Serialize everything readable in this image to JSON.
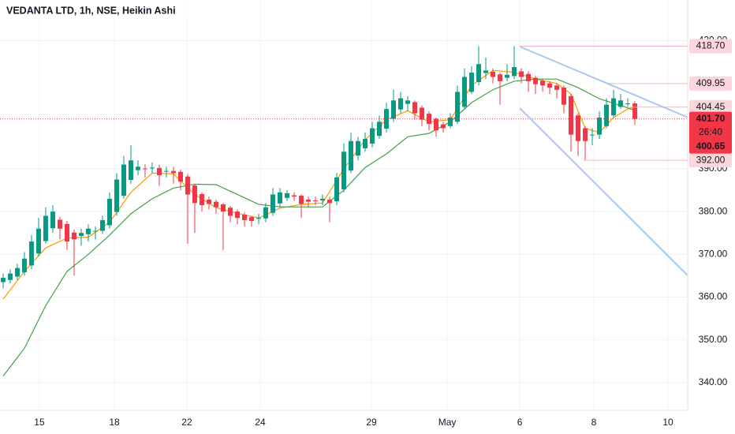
{
  "chart_data": {
    "type": "candlestick",
    "title": "VEDANTA LTD, 1h, NSE, Heikin Ashi",
    "up_color": "#089981",
    "down_color": "#f23645",
    "open": [
      363.5,
      364.0,
      364.8,
      365.8,
      367.4,
      370.2,
      373.1,
      376.1,
      378.1,
      377.1,
      375.1,
      374.3,
      374.7,
      375.4,
      375.5,
      376.8,
      379.9,
      383.7,
      387.4,
      389.7,
      390.1,
      390.1,
      390.2,
      389.4,
      389.5,
      389.3,
      388.2,
      386.1,
      384.1,
      382.8,
      382.3,
      381.7,
      380.9,
      380.0,
      379.3,
      378.7,
      378.3,
      378.4,
      379.7,
      381.9,
      383.2,
      383.8,
      383.7,
      382.8,
      382.6,
      382.6,
      382.8,
      382.4,
      385.2,
      389.6,
      393.1,
      394.8,
      395.9,
      397.7,
      399.4,
      401.7,
      403.9,
      405.2,
      405.6,
      404.3,
      402.9,
      401.7,
      400.4,
      400.0,
      401.0,
      404.5,
      408.0,
      410.3,
      412.4,
      412.7,
      412.1,
      411.3,
      411.7,
      412.8,
      412.2,
      411.3,
      410.6,
      410.0,
      409.5,
      409.0,
      407.0,
      402.5,
      399.5,
      398.0,
      398.0,
      400.0,
      402.5,
      404.5,
      405.3,
      405.3
    ],
    "high": [
      365.5,
      366.5,
      367.8,
      370.5,
      374.5,
      378.5,
      381.0,
      381.5,
      378.8,
      377.8,
      375.8,
      376.0,
      377.0,
      376.5,
      379.0,
      384.5,
      389.0,
      393.0,
      395.5,
      392.0,
      391.0,
      391.5,
      391.0,
      390.5,
      390.5,
      389.8,
      388.8,
      386.5,
      384.5,
      383.5,
      382.8,
      382.0,
      381.3,
      380.5,
      379.8,
      379.0,
      379.5,
      382.0,
      385.5,
      385.5,
      385.0,
      384.5,
      384.0,
      383.5,
      383.5,
      384.0,
      383.5,
      389.0,
      396.0,
      398.5,
      397.5,
      398.5,
      401.0,
      402.5,
      405.5,
      408.5,
      408.0,
      407.0,
      406.0,
      404.8,
      403.5,
      402.0,
      401.0,
      403.0,
      409.5,
      413.5,
      414.0,
      418.7,
      416.0,
      413.5,
      412.5,
      414.5,
      418.7,
      413.5,
      412.8,
      411.8,
      411.0,
      410.5,
      410.0,
      409.5,
      407.5,
      403.0,
      400.0,
      399.5,
      403.5,
      406.5,
      408.5,
      407.5,
      406.5,
      405.8
    ],
    "low": [
      362.0,
      363.2,
      364.0,
      365.0,
      366.5,
      369.5,
      372.5,
      375.0,
      373.5,
      371.0,
      365.0,
      372.0,
      373.0,
      373.5,
      374.8,
      376.0,
      379.0,
      383.0,
      386.5,
      388.5,
      388.0,
      389.0,
      386.0,
      388.0,
      386.5,
      385.0,
      372.5,
      375.0,
      380.0,
      380.5,
      379.5,
      371.0,
      377.5,
      377.0,
      376.5,
      376.5,
      377.0,
      377.5,
      379.0,
      381.0,
      382.5,
      382.5,
      378.5,
      381.0,
      381.5,
      381.5,
      377.5,
      381.5,
      384.5,
      389.0,
      392.0,
      394.0,
      395.0,
      397.0,
      398.5,
      401.0,
      403.0,
      403.5,
      401.5,
      400.0,
      399.0,
      397.5,
      398.5,
      399.5,
      400.5,
      404.0,
      407.5,
      409.5,
      411.0,
      410.0,
      405.0,
      410.5,
      411.0,
      410.0,
      408.0,
      407.5,
      408.0,
      407.5,
      406.5,
      403.0,
      394.0,
      393.0,
      392.0,
      395.5,
      397.0,
      399.5,
      402.0,
      404.0,
      404.5,
      400.3
    ],
    "close": [
      364.5,
      365.5,
      366.8,
      369.0,
      373.0,
      376.0,
      379.0,
      380.0,
      376.0,
      373.0,
      373.5,
      375.0,
      376.0,
      375.5,
      378.0,
      383.0,
      387.5,
      391.0,
      392.0,
      390.5,
      390.0,
      390.3,
      388.5,
      389.5,
      389.0,
      387.0,
      384.0,
      382.0,
      381.5,
      381.8,
      381.0,
      380.0,
      379.0,
      378.5,
      378.0,
      377.8,
      378.5,
      381.0,
      384.0,
      384.5,
      384.3,
      383.5,
      381.8,
      382.3,
      382.5,
      383.0,
      382.0,
      388.0,
      394.0,
      396.5,
      396.5,
      397.0,
      399.5,
      401.0,
      404.0,
      406.0,
      406.5,
      406.0,
      403.0,
      401.5,
      400.5,
      399.0,
      399.5,
      402.0,
      408.0,
      411.5,
      412.5,
      414.5,
      413.0,
      411.5,
      410.5,
      412.0,
      413.8,
      411.5,
      410.5,
      409.8,
      409.5,
      409.0,
      408.5,
      405.0,
      398.0,
      396.5,
      396.5,
      398.0,
      402.0,
      405.0,
      406.5,
      406.0,
      405.3,
      401.7
    ],
    "lines": [
      {
        "color": "#ff9800",
        "x": [
          0,
          3,
          6,
          9,
          12,
          15,
          18,
          21,
          24,
          27,
          30,
          33,
          36,
          39,
          42,
          45,
          48,
          51,
          54,
          57,
          60,
          63,
          66,
          69,
          72,
          75,
          78,
          80,
          82,
          84,
          86,
          88,
          89
        ],
        "values": [
          359.5,
          366,
          371.5,
          373.8,
          374,
          377.5,
          384.5,
          389,
          388.8,
          384,
          380.9,
          379.6,
          378.5,
          380.8,
          381.7,
          382.0,
          390,
          396.8,
          401.5,
          403.6,
          401,
          401.5,
          409.5,
          413,
          412.6,
          411,
          410,
          407.5,
          399.5,
          398.5,
          402,
          404,
          404.6
        ]
      },
      {
        "color": "#43a047",
        "x": [
          0,
          3,
          6,
          9,
          12,
          15,
          18,
          21,
          24,
          27,
          30,
          33,
          36,
          39,
          42,
          45,
          48,
          51,
          54,
          57,
          60,
          63,
          66,
          69,
          72,
          75,
          78,
          81,
          84,
          87,
          89
        ],
        "values": [
          341.5,
          348,
          358,
          366,
          370,
          374.5,
          379.5,
          383,
          385.5,
          386.4,
          386.3,
          384,
          381.7,
          381.1,
          381.1,
          381.1,
          385,
          390.3,
          393.5,
          397.5,
          398.3,
          401,
          405.5,
          408.5,
          410.5,
          411,
          411,
          409,
          406.4,
          404.8,
          403.7
        ]
      }
    ],
    "xlim": [
      -0.44,
      96.44
    ],
    "xticks": [
      {
        "value": 5.11,
        "label": "15"
      },
      {
        "value": 15.67,
        "label": "18"
      },
      {
        "value": 25.89,
        "label": "22"
      },
      {
        "value": 36.22,
        "label": "24"
      },
      {
        "value": 51.89,
        "label": "29"
      },
      {
        "value": 62.56,
        "label": "May"
      },
      {
        "value": 72.78,
        "label": "6"
      },
      {
        "value": 83.22,
        "label": "8"
      },
      {
        "value": 93.67,
        "label": "10"
      }
    ],
    "ylim": [
      333.5,
      429.5
    ],
    "yticks": [
      {
        "value": 340,
        "label": "340.00"
      },
      {
        "value": 350,
        "label": "350.00"
      },
      {
        "value": 360,
        "label": "360.00"
      },
      {
        "value": 370,
        "label": "370.00"
      },
      {
        "value": 380,
        "label": "380.00"
      },
      {
        "value": 390,
        "label": "390.00"
      },
      {
        "value": 420,
        "label": "420.00"
      }
    ],
    "grid": true,
    "price_levels": [
      {
        "value": 418.7,
        "label": "418.70"
      },
      {
        "value": 409.95,
        "label": "409.95"
      },
      {
        "value": 404.45,
        "label": "404.45"
      },
      {
        "value": 392,
        "label": "392.00"
      }
    ],
    "last_price": {
      "value": 401.7,
      "label": "401.70"
    },
    "countdown": "26:40",
    "last_price_alt": {
      "value": 400.65,
      "label": "400.65"
    }
  }
}
